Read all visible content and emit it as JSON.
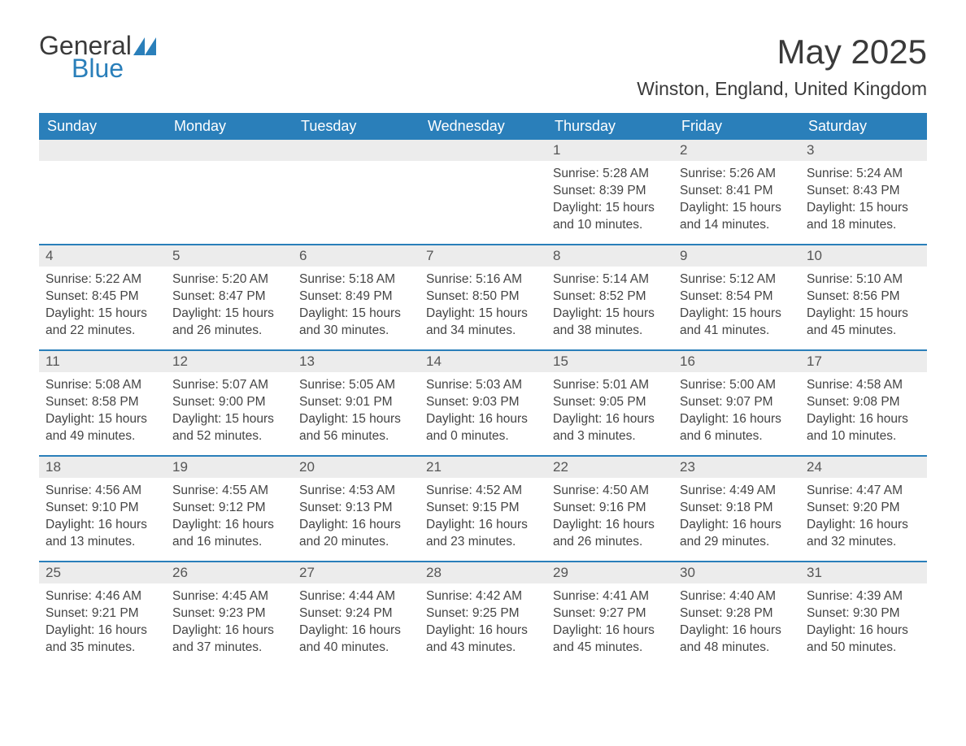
{
  "logo": {
    "word1": "General",
    "word2": "Blue"
  },
  "title": "May 2025",
  "subtitle": "Winston, England, United Kingdom",
  "colors": {
    "header_bg": "#2a7fba",
    "header_text": "#ffffff",
    "daynum_bg": "#ececec",
    "border": "#2a7fba",
    "text": "#444444",
    "page_bg": "#ffffff"
  },
  "day_names": [
    "Sunday",
    "Monday",
    "Tuesday",
    "Wednesday",
    "Thursday",
    "Friday",
    "Saturday"
  ],
  "weeks": [
    [
      {
        "day": "",
        "sunrise": "",
        "sunset": "",
        "daylight": ""
      },
      {
        "day": "",
        "sunrise": "",
        "sunset": "",
        "daylight": ""
      },
      {
        "day": "",
        "sunrise": "",
        "sunset": "",
        "daylight": ""
      },
      {
        "day": "",
        "sunrise": "",
        "sunset": "",
        "daylight": ""
      },
      {
        "day": "1",
        "sunrise": "Sunrise: 5:28 AM",
        "sunset": "Sunset: 8:39 PM",
        "daylight": "Daylight: 15 hours and 10 minutes."
      },
      {
        "day": "2",
        "sunrise": "Sunrise: 5:26 AM",
        "sunset": "Sunset: 8:41 PM",
        "daylight": "Daylight: 15 hours and 14 minutes."
      },
      {
        "day": "3",
        "sunrise": "Sunrise: 5:24 AM",
        "sunset": "Sunset: 8:43 PM",
        "daylight": "Daylight: 15 hours and 18 minutes."
      }
    ],
    [
      {
        "day": "4",
        "sunrise": "Sunrise: 5:22 AM",
        "sunset": "Sunset: 8:45 PM",
        "daylight": "Daylight: 15 hours and 22 minutes."
      },
      {
        "day": "5",
        "sunrise": "Sunrise: 5:20 AM",
        "sunset": "Sunset: 8:47 PM",
        "daylight": "Daylight: 15 hours and 26 minutes."
      },
      {
        "day": "6",
        "sunrise": "Sunrise: 5:18 AM",
        "sunset": "Sunset: 8:49 PM",
        "daylight": "Daylight: 15 hours and 30 minutes."
      },
      {
        "day": "7",
        "sunrise": "Sunrise: 5:16 AM",
        "sunset": "Sunset: 8:50 PM",
        "daylight": "Daylight: 15 hours and 34 minutes."
      },
      {
        "day": "8",
        "sunrise": "Sunrise: 5:14 AM",
        "sunset": "Sunset: 8:52 PM",
        "daylight": "Daylight: 15 hours and 38 minutes."
      },
      {
        "day": "9",
        "sunrise": "Sunrise: 5:12 AM",
        "sunset": "Sunset: 8:54 PM",
        "daylight": "Daylight: 15 hours and 41 minutes."
      },
      {
        "day": "10",
        "sunrise": "Sunrise: 5:10 AM",
        "sunset": "Sunset: 8:56 PM",
        "daylight": "Daylight: 15 hours and 45 minutes."
      }
    ],
    [
      {
        "day": "11",
        "sunrise": "Sunrise: 5:08 AM",
        "sunset": "Sunset: 8:58 PM",
        "daylight": "Daylight: 15 hours and 49 minutes."
      },
      {
        "day": "12",
        "sunrise": "Sunrise: 5:07 AM",
        "sunset": "Sunset: 9:00 PM",
        "daylight": "Daylight: 15 hours and 52 minutes."
      },
      {
        "day": "13",
        "sunrise": "Sunrise: 5:05 AM",
        "sunset": "Sunset: 9:01 PM",
        "daylight": "Daylight: 15 hours and 56 minutes."
      },
      {
        "day": "14",
        "sunrise": "Sunrise: 5:03 AM",
        "sunset": "Sunset: 9:03 PM",
        "daylight": "Daylight: 16 hours and 0 minutes."
      },
      {
        "day": "15",
        "sunrise": "Sunrise: 5:01 AM",
        "sunset": "Sunset: 9:05 PM",
        "daylight": "Daylight: 16 hours and 3 minutes."
      },
      {
        "day": "16",
        "sunrise": "Sunrise: 5:00 AM",
        "sunset": "Sunset: 9:07 PM",
        "daylight": "Daylight: 16 hours and 6 minutes."
      },
      {
        "day": "17",
        "sunrise": "Sunrise: 4:58 AM",
        "sunset": "Sunset: 9:08 PM",
        "daylight": "Daylight: 16 hours and 10 minutes."
      }
    ],
    [
      {
        "day": "18",
        "sunrise": "Sunrise: 4:56 AM",
        "sunset": "Sunset: 9:10 PM",
        "daylight": "Daylight: 16 hours and 13 minutes."
      },
      {
        "day": "19",
        "sunrise": "Sunrise: 4:55 AM",
        "sunset": "Sunset: 9:12 PM",
        "daylight": "Daylight: 16 hours and 16 minutes."
      },
      {
        "day": "20",
        "sunrise": "Sunrise: 4:53 AM",
        "sunset": "Sunset: 9:13 PM",
        "daylight": "Daylight: 16 hours and 20 minutes."
      },
      {
        "day": "21",
        "sunrise": "Sunrise: 4:52 AM",
        "sunset": "Sunset: 9:15 PM",
        "daylight": "Daylight: 16 hours and 23 minutes."
      },
      {
        "day": "22",
        "sunrise": "Sunrise: 4:50 AM",
        "sunset": "Sunset: 9:16 PM",
        "daylight": "Daylight: 16 hours and 26 minutes."
      },
      {
        "day": "23",
        "sunrise": "Sunrise: 4:49 AM",
        "sunset": "Sunset: 9:18 PM",
        "daylight": "Daylight: 16 hours and 29 minutes."
      },
      {
        "day": "24",
        "sunrise": "Sunrise: 4:47 AM",
        "sunset": "Sunset: 9:20 PM",
        "daylight": "Daylight: 16 hours and 32 minutes."
      }
    ],
    [
      {
        "day": "25",
        "sunrise": "Sunrise: 4:46 AM",
        "sunset": "Sunset: 9:21 PM",
        "daylight": "Daylight: 16 hours and 35 minutes."
      },
      {
        "day": "26",
        "sunrise": "Sunrise: 4:45 AM",
        "sunset": "Sunset: 9:23 PM",
        "daylight": "Daylight: 16 hours and 37 minutes."
      },
      {
        "day": "27",
        "sunrise": "Sunrise: 4:44 AM",
        "sunset": "Sunset: 9:24 PM",
        "daylight": "Daylight: 16 hours and 40 minutes."
      },
      {
        "day": "28",
        "sunrise": "Sunrise: 4:42 AM",
        "sunset": "Sunset: 9:25 PM",
        "daylight": "Daylight: 16 hours and 43 minutes."
      },
      {
        "day": "29",
        "sunrise": "Sunrise: 4:41 AM",
        "sunset": "Sunset: 9:27 PM",
        "daylight": "Daylight: 16 hours and 45 minutes."
      },
      {
        "day": "30",
        "sunrise": "Sunrise: 4:40 AM",
        "sunset": "Sunset: 9:28 PM",
        "daylight": "Daylight: 16 hours and 48 minutes."
      },
      {
        "day": "31",
        "sunrise": "Sunrise: 4:39 AM",
        "sunset": "Sunset: 9:30 PM",
        "daylight": "Daylight: 16 hours and 50 minutes."
      }
    ]
  ]
}
